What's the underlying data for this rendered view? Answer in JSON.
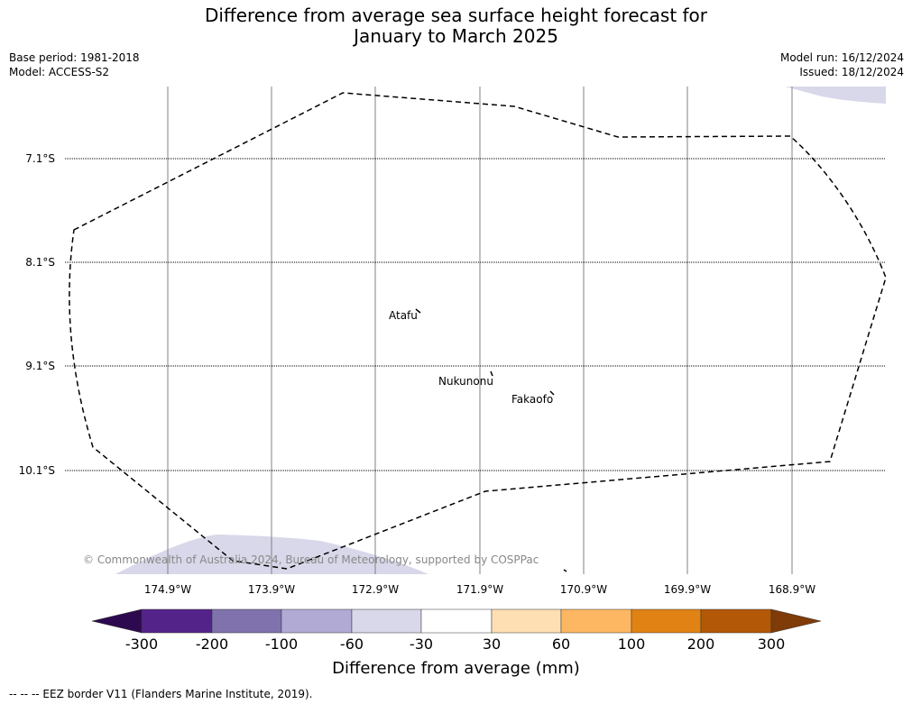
{
  "title_line1": "Difference from average sea surface height forecast for",
  "title_line2": "January to March 2025",
  "base_period": "Base period: 1981-2018",
  "model": "Model: ACCESS-S2",
  "model_run": "Model run: 16/12/2024",
  "issued": "Issued: 18/12/2024",
  "latitudes": [
    "7.1°S",
    "8.1°S",
    "9.1°S",
    "10.1°S"
  ],
  "longitudes": [
    "174.9°W",
    "173.9°W",
    "172.9°W",
    "171.9°W",
    "170.9°W",
    "169.9°W",
    "168.9°W"
  ],
  "places": {
    "atafu": "Atafu",
    "nukunonu": "Nukunonu",
    "fakaofo": "Fakaofo"
  },
  "copyright": "© Commonwealth of Australia 2024, Bureau of Meteorology, supported by COSPPac",
  "colorbar": {
    "ticks": [
      "-300",
      "-200",
      "-100",
      "-60",
      "-30",
      "30",
      "60",
      "100",
      "200",
      "300"
    ],
    "colors": [
      "#2d0a4f",
      "#54238a",
      "#8073ad",
      "#b1aad4",
      "#d8d8ea",
      "#ffffff",
      "#fedfb3",
      "#fdb763",
      "#e08214",
      "#b25806",
      "#7f3b08"
    ],
    "label": "Difference from average (mm)"
  },
  "footer": "-- -- -- EEZ border V11 (Flanders Marine Institute, 2019)."
}
